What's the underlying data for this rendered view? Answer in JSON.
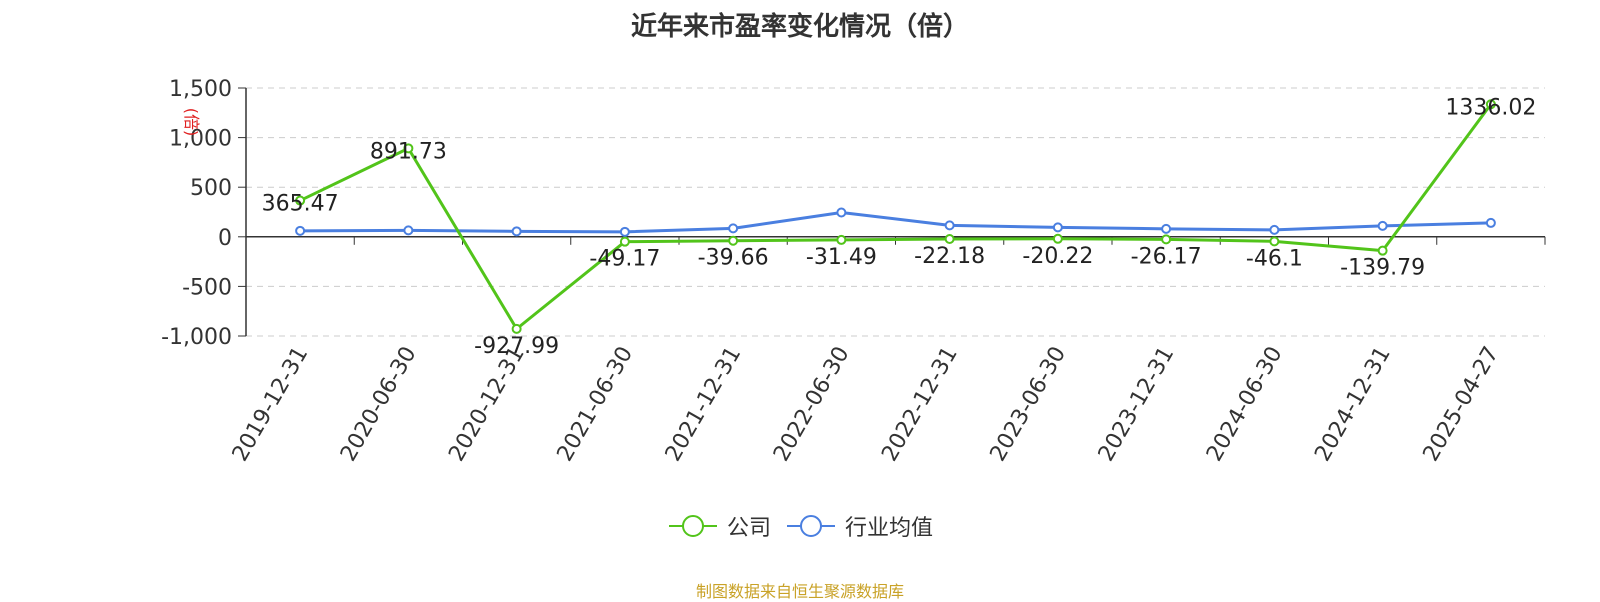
{
  "title": "近年来市盈率变化情况（倍）",
  "source": "制图数据来自恒生聚源数据库",
  "colors": {
    "company": "#52c41a",
    "industry": "#4a7fe0",
    "ylabel": "#e02020"
  },
  "chart_data": {
    "type": "line",
    "title": "近年来市盈率变化情况（倍）",
    "ylabel": "(倍)",
    "xlabel": "",
    "categories": [
      "2019-12-31",
      "2020-06-30",
      "2020-12-31",
      "2021-06-30",
      "2021-12-31",
      "2022-06-30",
      "2022-12-31",
      "2023-06-30",
      "2023-12-31",
      "2024-06-30",
      "2024-12-31",
      "2025-04-27"
    ],
    "ylim": [
      -1000,
      1500
    ],
    "yticks": [
      1500,
      1000,
      500,
      0,
      -500,
      -1000
    ],
    "ytick_labels": [
      "1,500",
      "1,000",
      "500",
      "0",
      "-500",
      "-1,000"
    ],
    "grid": true,
    "legend": "bottom-center",
    "series": [
      {
        "name": "公司",
        "color": "#52c41a",
        "values": [
          365.47,
          891.73,
          -927.99,
          -49.17,
          -39.66,
          -31.49,
          -22.18,
          -20.22,
          -26.17,
          -46.1,
          -139.79,
          1336.02
        ],
        "labels": [
          "365.47",
          "891.73",
          "-927.99",
          "-49.17",
          "-39.66",
          "-31.49",
          "-22.18",
          "-20.22",
          "-26.17",
          "-46.1",
          "-139.79",
          "1336.02"
        ]
      },
      {
        "name": "行业均值",
        "color": "#4a7fe0",
        "values": [
          60,
          65,
          55,
          50,
          85,
          245,
          115,
          95,
          80,
          70,
          110,
          140
        ]
      }
    ]
  }
}
